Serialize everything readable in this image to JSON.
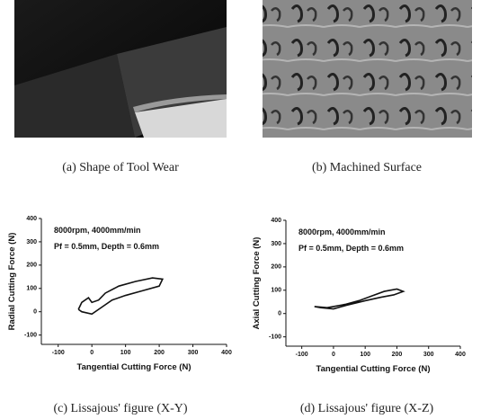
{
  "images": [
    {
      "caption": "(a) Shape of Tool Wear"
    },
    {
      "caption": "(b) Machined Surface"
    }
  ],
  "chart_data": [
    {
      "type": "line",
      "caption": "(c) Lissajous' figure (X-Y)",
      "annotations": [
        "8000rpm, 4000mm/min",
        "Pf = 0.5mm, Depth = 0.6mm"
      ],
      "xlabel": "Tangential Cutting Force (N)",
      "ylabel": "Radial Cutting Force (N)",
      "x": [
        -40,
        -30,
        -10,
        0,
        20,
        40,
        80,
        130,
        180,
        210,
        200,
        150,
        100,
        60,
        30,
        0,
        -30,
        -40
      ],
      "values": [
        10,
        40,
        60,
        40,
        50,
        80,
        110,
        130,
        145,
        140,
        110,
        90,
        70,
        50,
        20,
        -10,
        0,
        10
      ],
      "color": "#111111",
      "xlim": [
        -150,
        400
      ],
      "xticks": [
        -100,
        0,
        100,
        200,
        300,
        400
      ],
      "ylim": [
        -140,
        400
      ],
      "yticks": [
        -100,
        0,
        100,
        200,
        300,
        400
      ]
    },
    {
      "type": "line",
      "caption": "(d) Lissajous' figure (X-Z)",
      "annotations": [
        "8000rpm, 4000mm/min",
        "Pf = 0.5mm, Depth = 0.6mm"
      ],
      "xlabel": "Tangential Cutting Force (N)",
      "ylabel": "Axial Cutting Force (N)",
      "x": [
        -60,
        -20,
        0,
        40,
        80,
        120,
        160,
        200,
        220,
        190,
        150,
        100,
        40,
        0,
        -40,
        -60
      ],
      "values": [
        30,
        25,
        30,
        40,
        55,
        75,
        95,
        105,
        95,
        80,
        70,
        55,
        35,
        20,
        25,
        30
      ],
      "color": "#111111",
      "xlim": [
        -150,
        400
      ],
      "xticks": [
        -100,
        0,
        100,
        200,
        300,
        400
      ],
      "ylim": [
        -140,
        400
      ],
      "yticks": [
        -100,
        0,
        100,
        200,
        300,
        400
      ]
    }
  ]
}
